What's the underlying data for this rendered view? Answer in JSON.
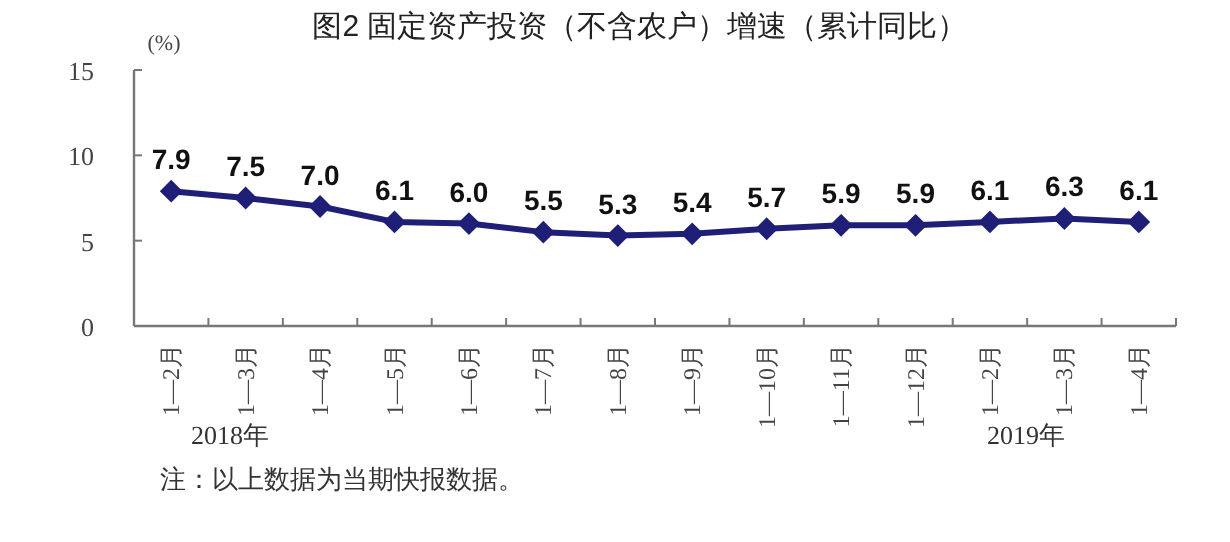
{
  "chart_data": {
    "type": "line",
    "title": "图2   固定资产投资（不含农户）增速（累计同比）",
    "ylabel": "(%)",
    "categories": [
      "1—2月",
      "1—3月",
      "1—4月",
      "1—5月",
      "1—6月",
      "1—7月",
      "1—8月",
      "1—9月",
      "1—10月",
      "1—11月",
      "1—12月",
      "1—2月",
      "1—3月",
      "1—4月"
    ],
    "series": [
      {
        "color": "#1f1f78",
        "values": [
          7.9,
          7.5,
          7.0,
          6.1,
          6.0,
          5.5,
          5.3,
          5.4,
          5.7,
          5.9,
          5.9,
          6.1,
          6.3,
          6.1
        ],
        "value_labels": [
          "7.9",
          "7.5",
          "7.0",
          "6.1",
          "6.0",
          "5.5",
          "5.3",
          "5.4",
          "5.7",
          "5.9",
          "5.9",
          "6.1",
          "6.3",
          "6.1"
        ]
      }
    ],
    "ylim": [
      0,
      15
    ],
    "yticks": [
      0,
      5,
      10,
      15
    ],
    "marker": "diamond",
    "annotations": [
      "2018年",
      "2019年",
      "注：以上数据为当期快报数据。"
    ]
  }
}
